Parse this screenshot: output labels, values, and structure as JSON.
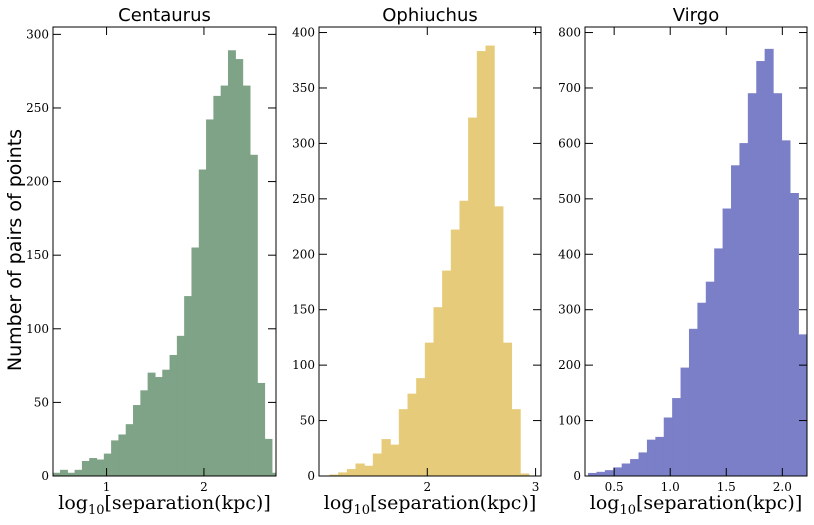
{
  "chart_data": [
    {
      "type": "bar",
      "title": "Centaurus",
      "xlabel_prefix": "log",
      "xlabel_sub": "10",
      "xlabel_suffix": "[separation(kpc)]",
      "ylabel": "Number of pairs of points",
      "color": "#7fa387",
      "xlim": [
        0.45,
        2.74
      ],
      "ylim": [
        0,
        305
      ],
      "xticks": [
        1,
        2
      ],
      "xtick_labels": [
        "1",
        "2"
      ],
      "yticks": [
        0,
        50,
        100,
        150,
        200,
        250,
        300
      ],
      "ytick_labels": [
        "0",
        "50",
        "100",
        "150",
        "200",
        "250",
        "300"
      ],
      "bin_start": 0.45,
      "bin_width": 0.075,
      "values": [
        2,
        4,
        2,
        4,
        10,
        12,
        11,
        15,
        24,
        28,
        35,
        48,
        58,
        70,
        67,
        72,
        82,
        95,
        122,
        155,
        208,
        242,
        258,
        265,
        289,
        283,
        265,
        218,
        63,
        25,
        2
      ]
    },
    {
      "type": "bar",
      "title": "Ophiuchus",
      "xlabel_prefix": "log",
      "xlabel_sub": "10",
      "xlabel_suffix": "[separation(kpc)]",
      "color": "#e6cc7a",
      "xlim": [
        1.0,
        3.05
      ],
      "ylim": [
        0,
        405
      ],
      "xticks": [
        2,
        3
      ],
      "xtick_labels": [
        "2",
        "3"
      ],
      "yticks": [
        0,
        50,
        100,
        150,
        200,
        250,
        300,
        350,
        400
      ],
      "ytick_labels": [
        "0",
        "50",
        "100",
        "150",
        "200",
        "250",
        "300",
        "350",
        "400"
      ],
      "bin_start": 1.1,
      "bin_width": 0.08,
      "values": [
        1,
        3,
        6,
        11,
        9,
        20,
        33,
        28,
        60,
        74,
        88,
        120,
        152,
        185,
        222,
        248,
        323,
        383,
        388,
        243,
        120,
        60,
        2
      ]
    },
    {
      "type": "bar",
      "title": "Virgo",
      "xlabel_prefix": "log",
      "xlabel_sub": "10",
      "xlabel_suffix": "[separation(kpc)]",
      "color": "#7b7fc7",
      "xlim": [
        0.24,
        2.22
      ],
      "ylim": [
        0,
        810
      ],
      "xticks": [
        0.5,
        1.0,
        1.5,
        2.0
      ],
      "xtick_labels": [
        "0.5",
        "1.0",
        "1.5",
        "2.0"
      ],
      "yticks": [
        0,
        100,
        200,
        300,
        400,
        500,
        600,
        700,
        800
      ],
      "ytick_labels": [
        "0",
        "100",
        "200",
        "300",
        "400",
        "500",
        "600",
        "700",
        "800"
      ],
      "bin_start": 0.27,
      "bin_width": 0.075,
      "values": [
        5,
        7,
        10,
        15,
        22,
        30,
        42,
        65,
        70,
        105,
        140,
        195,
        265,
        312,
        350,
        410,
        482,
        560,
        600,
        690,
        748,
        770,
        690,
        605,
        510,
        255,
        100,
        30
      ]
    }
  ]
}
